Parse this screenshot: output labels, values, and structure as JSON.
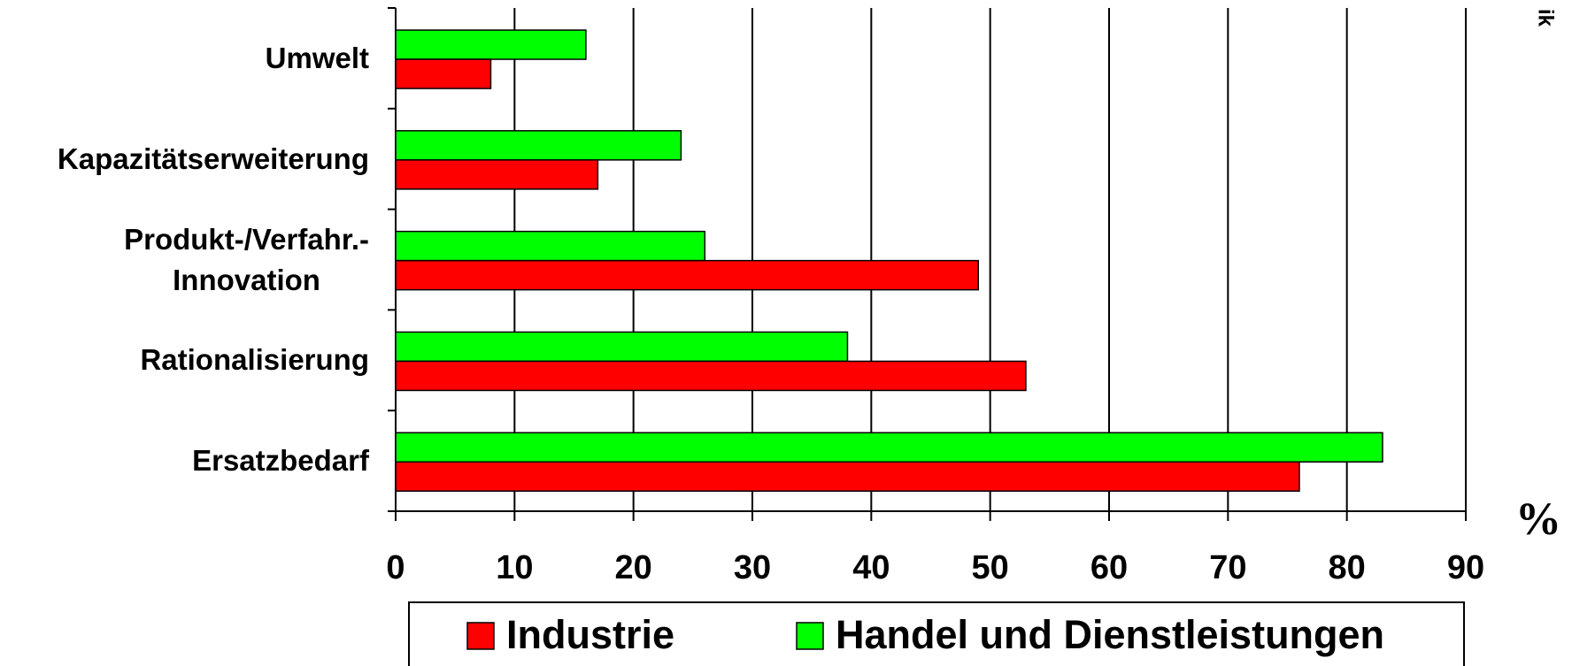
{
  "chart_data": {
    "type": "hbar",
    "categories": [
      "Umwelt",
      "Kapazitätserweiterung",
      "Produkt-/Verfahr.-\nInnovation",
      "Rationalisierung",
      "Ersatzbedarf"
    ],
    "series": [
      {
        "name": "Industrie",
        "color": "#ff0000",
        "values": [
          8,
          17,
          49,
          53,
          76
        ]
      },
      {
        "name": "Handel und Dienstleistungen",
        "color": "#00ff00",
        "values": [
          16,
          24,
          26,
          38,
          83
        ]
      }
    ],
    "xlim": [
      0,
      90
    ],
    "xticks": [
      0,
      10,
      20,
      30,
      40,
      50,
      60,
      70,
      80,
      90
    ],
    "x_label": "%",
    "annotation": "ik",
    "grid": true
  }
}
